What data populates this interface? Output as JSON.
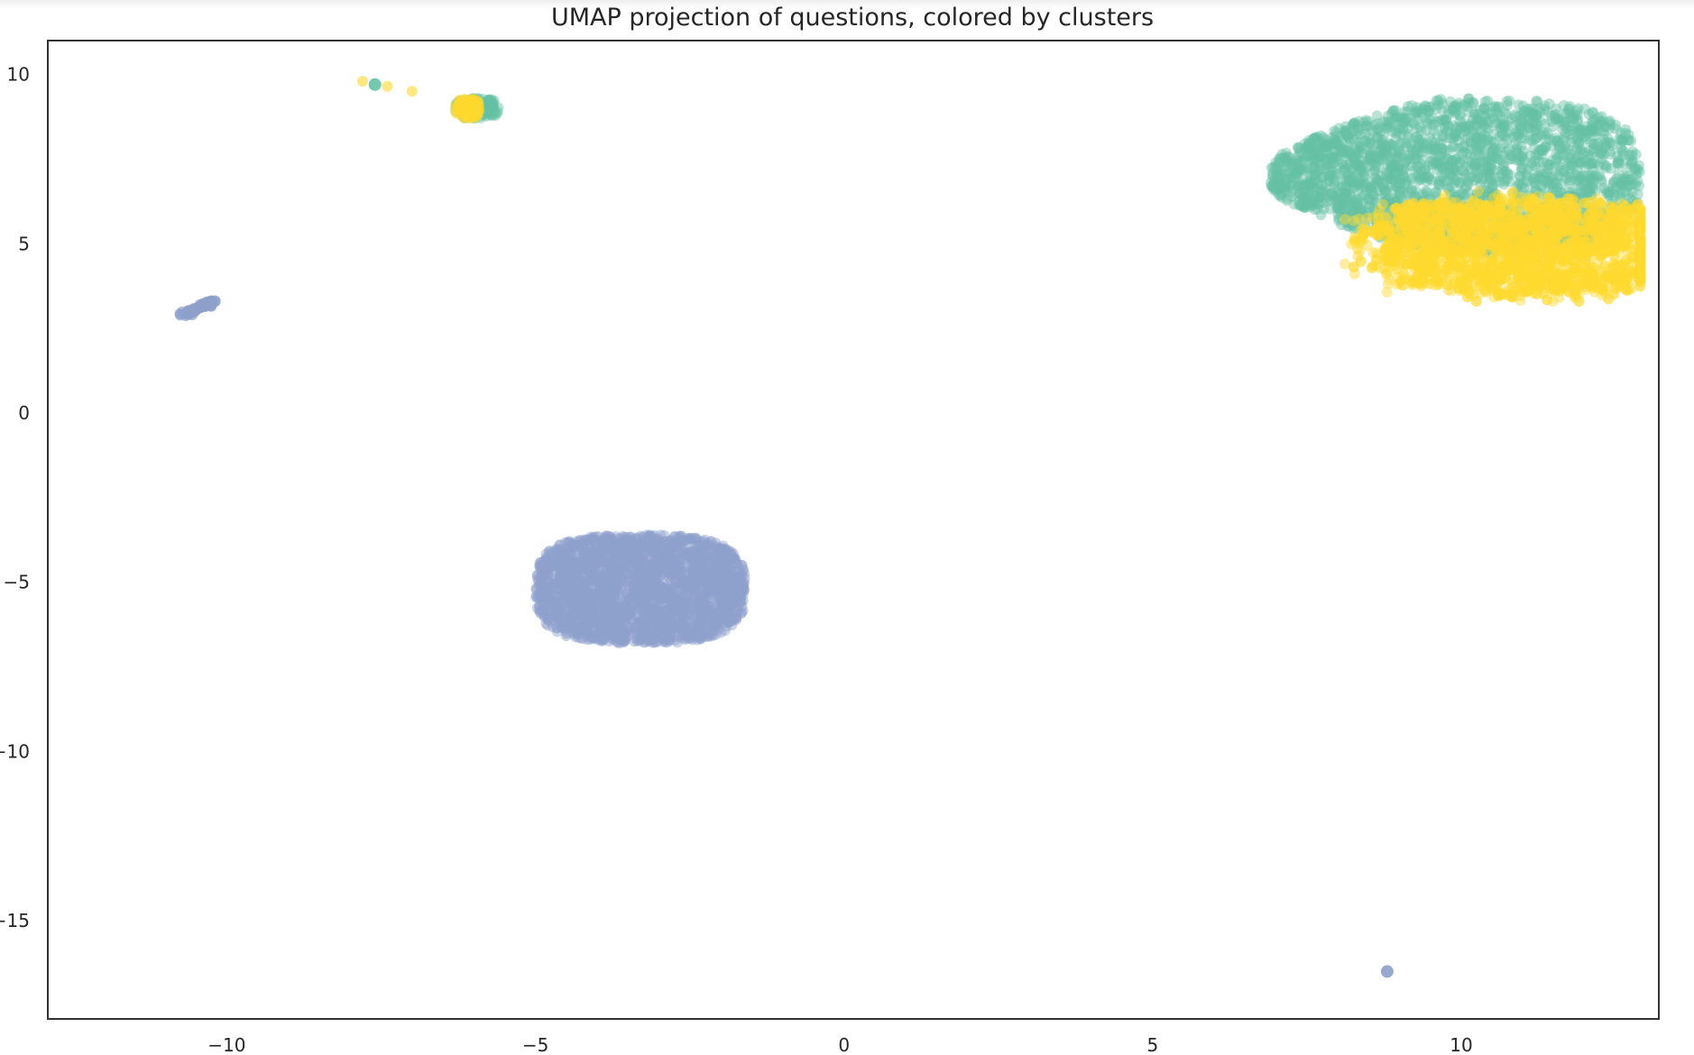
{
  "chart_data": {
    "type": "scatter",
    "title": "UMAP projection of questions, colored by clusters",
    "xlabel": "",
    "ylabel": "",
    "xlim": [
      -12.9,
      13.2
    ],
    "ylim": [
      -17.9,
      11.0
    ],
    "xticks": [
      -10,
      -5,
      0,
      5,
      10
    ],
    "xtick_labels": [
      "−10",
      "−5",
      "0",
      "5",
      "10"
    ],
    "yticks": [
      10,
      5,
      0,
      -5,
      -10,
      -15
    ],
    "ytick_labels": [
      "10",
      "5",
      "0",
      "−5",
      "−10",
      "−15"
    ],
    "grid": false,
    "legend": "none",
    "colors": {
      "teal": "#66c2a5",
      "blue": "#8da0cb",
      "yellow": "#ffd92f"
    },
    "series": [
      {
        "color": "#8da0cb",
        "clusters": [
          {
            "x_range": [
              -5.0,
              -1.6
            ],
            "y_range": [
              -6.8,
              -3.6
            ],
            "center": [
              -3.0,
              -5.1
            ],
            "shape": "blob"
          },
          {
            "x_range": [
              -10.7,
              -10.2
            ],
            "y_range": [
              2.9,
              3.3
            ],
            "center": [
              -10.45,
              3.1
            ],
            "shape": "streak"
          },
          {
            "x": 8.8,
            "y": -16.5,
            "shape": "point"
          }
        ]
      },
      {
        "color": "#66c2a5",
        "clusters": [
          {
            "x_range": [
              6.9,
              12.9
            ],
            "y_range": [
              4.3,
              8.9
            ],
            "center": [
              10.0,
              7.2
            ],
            "shape": "cloud"
          },
          {
            "x_range": [
              -6.3,
              -5.6
            ],
            "y_range": [
              8.7,
              9.3
            ],
            "center": [
              -5.95,
              9.05
            ],
            "shape": "small"
          },
          {
            "x": -7.6,
            "y": 9.7,
            "shape": "point"
          }
        ]
      },
      {
        "color": "#ffd92f",
        "clusters": [
          {
            "x_range": [
              7.9,
              12.9
            ],
            "y_range": [
              3.3,
              7.0
            ],
            "center": [
              10.9,
              4.9
            ],
            "shape": "cloud"
          },
          {
            "x_range": [
              -6.3,
              -5.9
            ],
            "y_range": [
              8.7,
              9.3
            ],
            "center": [
              -6.15,
              8.95
            ],
            "shape": "small"
          },
          {
            "x_range": [
              -7.8,
              -7.0
            ],
            "y_range": [
              9.5,
              9.8
            ],
            "center": [
              -7.4,
              9.65
            ],
            "shape": "points"
          }
        ]
      }
    ]
  }
}
